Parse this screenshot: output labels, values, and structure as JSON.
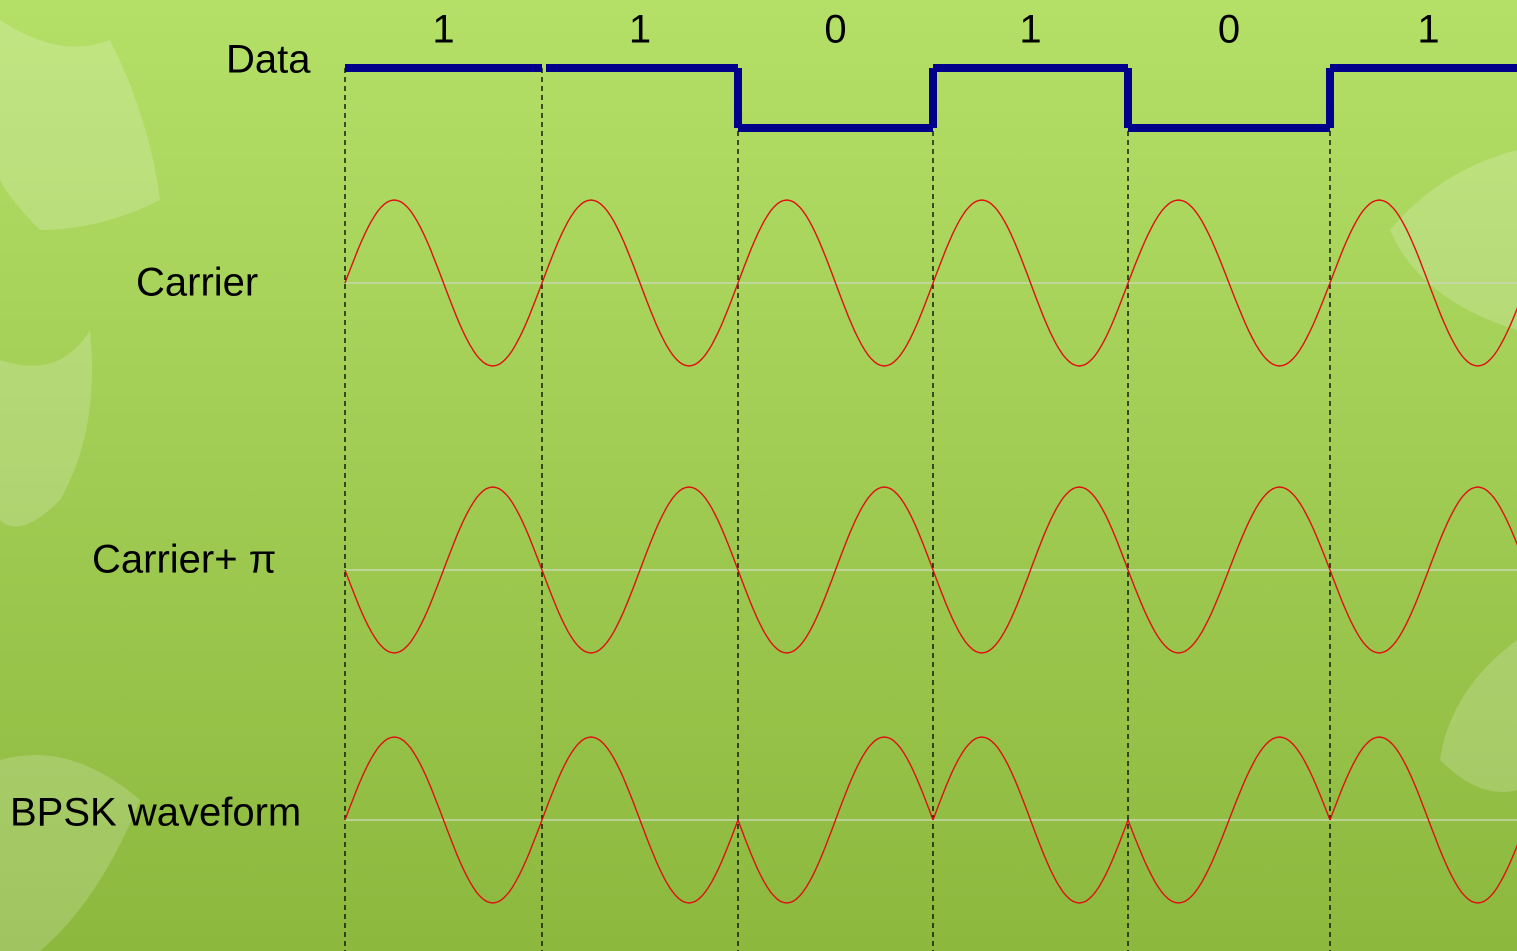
{
  "labels": {
    "data": "Data",
    "carrier": "Carrier",
    "carrier_pi": "Carrier+ π",
    "bpsk": "BPSK waveform"
  },
  "bits": [
    "1",
    "1",
    "0",
    "1",
    "0",
    "1"
  ]
}
